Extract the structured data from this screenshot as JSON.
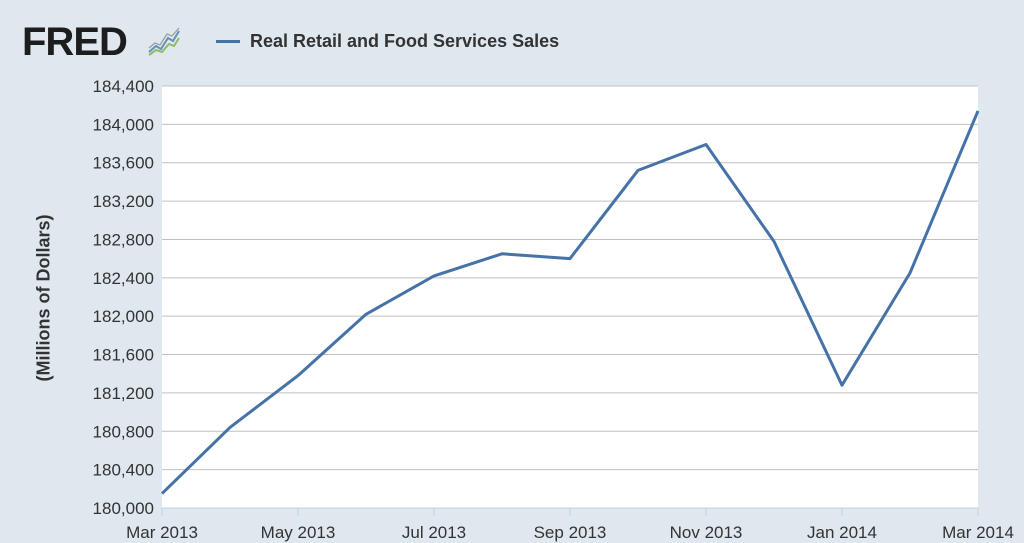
{
  "header": {
    "logo_text": "FRED",
    "logo_icon": "line-chart-icon"
  },
  "colors": {
    "background": "#dfe7ef",
    "plot_background": "#ffffff",
    "series": "#4572a7",
    "grid": "#c0c0c0"
  },
  "chart_data": {
    "type": "line",
    "title": "",
    "xlabel": "",
    "ylabel": "(Millions of Dollars)",
    "x": [
      "Mar 2013",
      "Apr 2013",
      "May 2013",
      "Jun 2013",
      "Jul 2013",
      "Aug 2013",
      "Sep 2013",
      "Oct 2013",
      "Nov 2013",
      "Dec 2013",
      "Jan 2014",
      "Feb 2014",
      "Mar 2014"
    ],
    "x_tick_labels": [
      "Mar 2013",
      "May 2013",
      "Jul 2013",
      "Sep 2013",
      "Nov 2013",
      "Jan 2014",
      "Mar 2014"
    ],
    "y_tick_labels": [
      "180,000",
      "180,400",
      "180,800",
      "181,200",
      "181,600",
      "182,000",
      "182,400",
      "182,800",
      "183,200",
      "183,600",
      "184,000",
      "184,400"
    ],
    "ylim": [
      180000,
      184400
    ],
    "y_ticks": [
      180000,
      180400,
      180800,
      181200,
      181600,
      182000,
      182400,
      182800,
      183200,
      183600,
      184000,
      184400
    ],
    "grid": true,
    "legend_position": "top",
    "series": [
      {
        "name": "Real Retail and Food Services Sales",
        "values": [
          180150,
          180840,
          181380,
          182020,
          182420,
          182650,
          182600,
          183520,
          183790,
          182780,
          181280,
          182450,
          184140
        ]
      }
    ]
  }
}
